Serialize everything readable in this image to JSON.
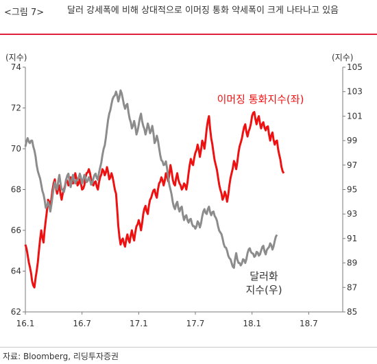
{
  "figure": {
    "label": "<그림 7>",
    "title": "달러 강세폭에 비해 상대적으로 이머징 통화 약세폭이 크게 나타나고 있음",
    "source": "자료: Bloomberg, 리딩투자증권"
  },
  "chart_data": {
    "type": "line",
    "left_axis": {
      "unit_label": "(지수)",
      "ylim": [
        62,
        74
      ],
      "ticks": [
        "74",
        "72",
        "70",
        "68",
        "66",
        "64",
        "62"
      ]
    },
    "right_axis": {
      "unit_label": "(지수)",
      "ylim": [
        85,
        105
      ],
      "ticks": [
        "105",
        "103",
        "101",
        "99",
        "97",
        "95",
        "93",
        "91",
        "89",
        "87",
        "85"
      ]
    },
    "x_axis": {
      "ticks": [
        "16.1",
        "16.7",
        "17.1",
        "17.7",
        "18.1",
        "18.7"
      ],
      "xlim": [
        2016.0,
        2018.8
      ]
    },
    "grid": false,
    "legend": "inline",
    "series": [
      {
        "name": "이머징 통화지수(좌)",
        "axis": "left",
        "color": "#ee1111",
        "label_lines": [
          "이머징 통화지수(좌)"
        ],
        "points": [
          [
            2016.0,
            65.3
          ],
          [
            2016.02,
            64.8
          ],
          [
            2016.04,
            64.2
          ],
          [
            2016.06,
            63.5
          ],
          [
            2016.08,
            63.2
          ],
          [
            2016.1,
            64.0
          ],
          [
            2016.12,
            65.0
          ],
          [
            2016.14,
            66.0
          ],
          [
            2016.16,
            65.4
          ],
          [
            2016.18,
            66.5
          ],
          [
            2016.2,
            67.5
          ],
          [
            2016.22,
            67.2
          ],
          [
            2016.24,
            68.0
          ],
          [
            2016.26,
            68.5
          ],
          [
            2016.28,
            67.8
          ],
          [
            2016.3,
            68.2
          ],
          [
            2016.32,
            67.5
          ],
          [
            2016.34,
            68.0
          ],
          [
            2016.36,
            68.5
          ],
          [
            2016.38,
            68.2
          ],
          [
            2016.4,
            68.6
          ],
          [
            2016.42,
            68.3
          ],
          [
            2016.44,
            68.8
          ],
          [
            2016.46,
            68.2
          ],
          [
            2016.48,
            68.5
          ],
          [
            2016.5,
            68.0
          ],
          [
            2016.52,
            68.2
          ],
          [
            2016.54,
            68.8
          ],
          [
            2016.56,
            69.0
          ],
          [
            2016.58,
            68.5
          ],
          [
            2016.6,
            68.2
          ],
          [
            2016.62,
            68.4
          ],
          [
            2016.64,
            68.0
          ],
          [
            2016.66,
            68.6
          ],
          [
            2016.68,
            69.0
          ],
          [
            2016.7,
            68.7
          ],
          [
            2016.72,
            69.1
          ],
          [
            2016.74,
            68.5
          ],
          [
            2016.76,
            68.8
          ],
          [
            2016.78,
            68.3
          ],
          [
            2016.8,
            67.8
          ],
          [
            2016.82,
            66.2
          ],
          [
            2016.84,
            65.3
          ],
          [
            2016.86,
            65.6
          ],
          [
            2016.88,
            65.2
          ],
          [
            2016.9,
            65.8
          ],
          [
            2016.92,
            65.4
          ],
          [
            2016.94,
            66.0
          ],
          [
            2016.96,
            65.5
          ],
          [
            2016.98,
            66.2
          ],
          [
            2017.0,
            66.5
          ],
          [
            2017.02,
            66.0
          ],
          [
            2017.04,
            66.8
          ],
          [
            2017.06,
            67.2
          ],
          [
            2017.08,
            66.8
          ],
          [
            2017.1,
            67.5
          ],
          [
            2017.12,
            67.8
          ],
          [
            2017.14,
            68.0
          ],
          [
            2017.16,
            67.6
          ],
          [
            2017.18,
            68.3
          ],
          [
            2017.2,
            68.6
          ],
          [
            2017.22,
            68.2
          ],
          [
            2017.24,
            68.8
          ],
          [
            2017.26,
            68.4
          ],
          [
            2017.28,
            69.2
          ],
          [
            2017.3,
            68.5
          ],
          [
            2017.32,
            68.2
          ],
          [
            2017.34,
            68.8
          ],
          [
            2017.36,
            68.3
          ],
          [
            2017.38,
            68.0
          ],
          [
            2017.4,
            68.3
          ],
          [
            2017.42,
            68.0
          ],
          [
            2017.44,
            68.8
          ],
          [
            2017.46,
            69.5
          ],
          [
            2017.48,
            69.2
          ],
          [
            2017.5,
            69.8
          ],
          [
            2017.52,
            70.2
          ],
          [
            2017.54,
            69.6
          ],
          [
            2017.56,
            70.4
          ],
          [
            2017.58,
            70.0
          ],
          [
            2017.6,
            71.0
          ],
          [
            2017.62,
            71.6
          ],
          [
            2017.64,
            70.5
          ],
          [
            2017.66,
            69.8
          ],
          [
            2017.68,
            69.2
          ],
          [
            2017.7,
            68.6
          ],
          [
            2017.72,
            68.0
          ],
          [
            2017.74,
            67.5
          ],
          [
            2017.76,
            67.9
          ],
          [
            2017.78,
            67.4
          ],
          [
            2017.8,
            68.2
          ],
          [
            2017.82,
            68.8
          ],
          [
            2017.84,
            69.4
          ],
          [
            2017.86,
            69.0
          ],
          [
            2017.88,
            69.8
          ],
          [
            2017.9,
            70.3
          ],
          [
            2017.92,
            70.8
          ],
          [
            2017.94,
            71.2
          ],
          [
            2017.96,
            70.6
          ],
          [
            2017.98,
            71.0
          ],
          [
            2018.0,
            71.6
          ],
          [
            2018.02,
            71.8
          ],
          [
            2018.04,
            71.2
          ],
          [
            2018.06,
            71.6
          ],
          [
            2018.08,
            71.0
          ],
          [
            2018.1,
            71.3
          ],
          [
            2018.12,
            70.9
          ],
          [
            2018.14,
            71.1
          ],
          [
            2018.16,
            70.4
          ],
          [
            2018.18,
            70.8
          ],
          [
            2018.2,
            70.2
          ],
          [
            2018.22,
            70.4
          ],
          [
            2018.24,
            69.7
          ],
          [
            2018.26,
            69.1
          ],
          [
            2018.28,
            68.8
          ]
        ]
      },
      {
        "name": "달러화 지수(우)",
        "axis": "right",
        "color": "#8c8c8c",
        "label_lines": [
          "달러화",
          "지수(우)"
        ],
        "points": [
          [
            2016.0,
            98.5
          ],
          [
            2016.02,
            99.2
          ],
          [
            2016.04,
            98.8
          ],
          [
            2016.06,
            99.0
          ],
          [
            2016.08,
            98.2
          ],
          [
            2016.1,
            97.0
          ],
          [
            2016.12,
            96.2
          ],
          [
            2016.14,
            95.4
          ],
          [
            2016.16,
            94.6
          ],
          [
            2016.18,
            93.5
          ],
          [
            2016.2,
            94.0
          ],
          [
            2016.22,
            93.2
          ],
          [
            2016.24,
            94.5
          ],
          [
            2016.26,
            95.6
          ],
          [
            2016.28,
            95.0
          ],
          [
            2016.3,
            96.2
          ],
          [
            2016.32,
            95.0
          ],
          [
            2016.34,
            94.8
          ],
          [
            2016.36,
            95.8
          ],
          [
            2016.38,
            96.3
          ],
          [
            2016.4,
            95.2
          ],
          [
            2016.42,
            96.2
          ],
          [
            2016.44,
            95.5
          ],
          [
            2016.46,
            95.8
          ],
          [
            2016.48,
            96.3
          ],
          [
            2016.5,
            95.5
          ],
          [
            2016.52,
            96.2
          ],
          [
            2016.54,
            95.6
          ],
          [
            2016.56,
            96.0
          ],
          [
            2016.58,
            95.4
          ],
          [
            2016.6,
            95.9
          ],
          [
            2016.62,
            96.3
          ],
          [
            2016.64,
            95.8
          ],
          [
            2016.66,
            96.8
          ],
          [
            2016.68,
            97.8
          ],
          [
            2016.7,
            98.6
          ],
          [
            2016.72,
            100.0
          ],
          [
            2016.74,
            101.2
          ],
          [
            2016.76,
            102.0
          ],
          [
            2016.78,
            102.6
          ],
          [
            2016.8,
            103.0
          ],
          [
            2016.82,
            102.2
          ],
          [
            2016.84,
            103.1
          ],
          [
            2016.86,
            102.4
          ],
          [
            2016.88,
            101.6
          ],
          [
            2016.9,
            102.0
          ],
          [
            2016.92,
            100.8
          ],
          [
            2016.94,
            100.0
          ],
          [
            2016.96,
            100.6
          ],
          [
            2016.98,
            99.5
          ],
          [
            2017.0,
            100.3
          ],
          [
            2017.02,
            101.2
          ],
          [
            2017.04,
            100.2
          ],
          [
            2017.06,
            99.5
          ],
          [
            2017.08,
            100.4
          ],
          [
            2017.1,
            99.6
          ],
          [
            2017.12,
            100.2
          ],
          [
            2017.14,
            98.8
          ],
          [
            2017.16,
            99.4
          ],
          [
            2017.18,
            98.4
          ],
          [
            2017.2,
            97.4
          ],
          [
            2017.22,
            97.0
          ],
          [
            2017.24,
            97.3
          ],
          [
            2017.26,
            96.0
          ],
          [
            2017.28,
            95.0
          ],
          [
            2017.3,
            94.0
          ],
          [
            2017.32,
            93.4
          ],
          [
            2017.34,
            94.0
          ],
          [
            2017.36,
            93.2
          ],
          [
            2017.38,
            93.6
          ],
          [
            2017.4,
            92.5
          ],
          [
            2017.42,
            92.9
          ],
          [
            2017.44,
            92.3
          ],
          [
            2017.46,
            92.6
          ],
          [
            2017.48,
            92.0
          ],
          [
            2017.5,
            91.8
          ],
          [
            2017.52,
            92.4
          ],
          [
            2017.54,
            91.9
          ],
          [
            2017.56,
            92.8
          ],
          [
            2017.58,
            93.4
          ],
          [
            2017.6,
            93.0
          ],
          [
            2017.62,
            93.6
          ],
          [
            2017.64,
            92.9
          ],
          [
            2017.66,
            93.2
          ],
          [
            2017.68,
            92.7
          ],
          [
            2017.7,
            92.0
          ],
          [
            2017.72,
            91.5
          ],
          [
            2017.74,
            91.0
          ],
          [
            2017.76,
            90.3
          ],
          [
            2017.78,
            90.0
          ],
          [
            2017.8,
            89.4
          ],
          [
            2017.82,
            89.0
          ],
          [
            2017.84,
            88.6
          ],
          [
            2017.86,
            89.8
          ],
          [
            2017.88,
            89.0
          ],
          [
            2017.9,
            88.8
          ],
          [
            2017.92,
            89.3
          ],
          [
            2017.94,
            89.0
          ],
          [
            2017.96,
            89.8
          ],
          [
            2017.98,
            90.2
          ],
          [
            2018.0,
            89.8
          ],
          [
            2018.02,
            89.5
          ],
          [
            2018.04,
            89.9
          ],
          [
            2018.06,
            89.6
          ],
          [
            2018.08,
            90.0
          ],
          [
            2018.1,
            90.4
          ],
          [
            2018.12,
            89.7
          ],
          [
            2018.14,
            90.2
          ],
          [
            2018.16,
            90.6
          ],
          [
            2018.18,
            90.1
          ],
          [
            2018.2,
            90.8
          ],
          [
            2018.22,
            91.3
          ]
        ]
      }
    ]
  }
}
